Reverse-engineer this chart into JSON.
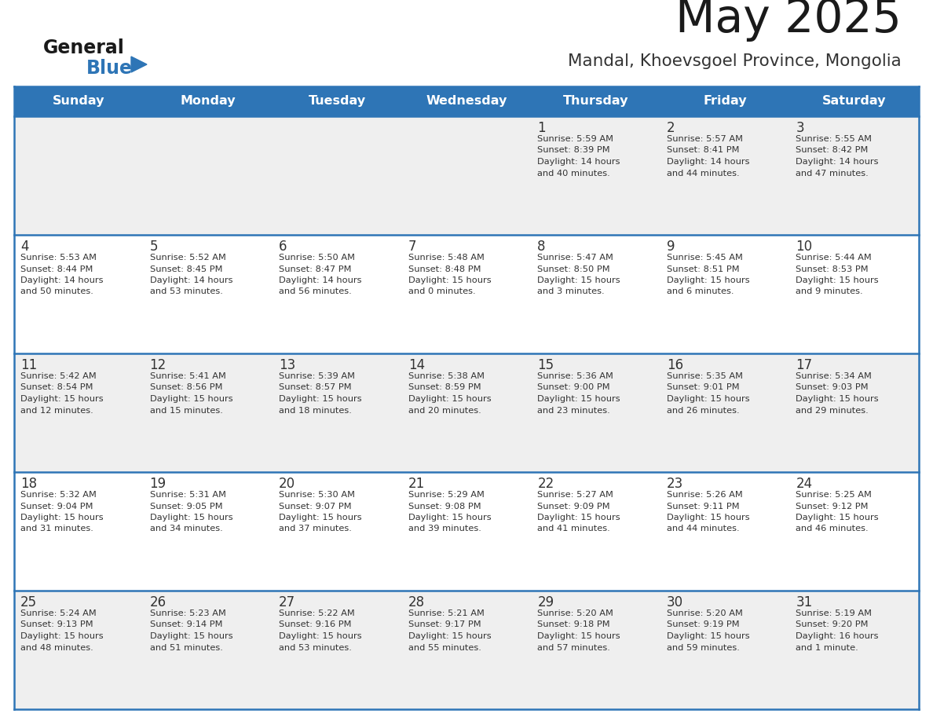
{
  "title": "May 2025",
  "subtitle": "Mandal, Khoevsgoel Province, Mongolia",
  "header_bg": "#2E75B6",
  "header_text_color": "#FFFFFF",
  "day_headers": [
    "Sunday",
    "Monday",
    "Tuesday",
    "Wednesday",
    "Thursday",
    "Friday",
    "Saturday"
  ],
  "cell_bg_light": "#EFEFEF",
  "cell_bg_white": "#FFFFFF",
  "divider_color": "#2E75B6",
  "text_color": "#333333",
  "number_color": "#333333",
  "logo_general_color": "#1a1a1a",
  "logo_blue_color": "#2E75B6",
  "logo_triangle_color": "#2E75B6",
  "weeks": [
    {
      "days": [
        {
          "day": null,
          "info": null
        },
        {
          "day": null,
          "info": null
        },
        {
          "day": null,
          "info": null
        },
        {
          "day": null,
          "info": null
        },
        {
          "day": 1,
          "info": "Sunrise: 5:59 AM\nSunset: 8:39 PM\nDaylight: 14 hours\nand 40 minutes."
        },
        {
          "day": 2,
          "info": "Sunrise: 5:57 AM\nSunset: 8:41 PM\nDaylight: 14 hours\nand 44 minutes."
        },
        {
          "day": 3,
          "info": "Sunrise: 5:55 AM\nSunset: 8:42 PM\nDaylight: 14 hours\nand 47 minutes."
        }
      ]
    },
    {
      "days": [
        {
          "day": 4,
          "info": "Sunrise: 5:53 AM\nSunset: 8:44 PM\nDaylight: 14 hours\nand 50 minutes."
        },
        {
          "day": 5,
          "info": "Sunrise: 5:52 AM\nSunset: 8:45 PM\nDaylight: 14 hours\nand 53 minutes."
        },
        {
          "day": 6,
          "info": "Sunrise: 5:50 AM\nSunset: 8:47 PM\nDaylight: 14 hours\nand 56 minutes."
        },
        {
          "day": 7,
          "info": "Sunrise: 5:48 AM\nSunset: 8:48 PM\nDaylight: 15 hours\nand 0 minutes."
        },
        {
          "day": 8,
          "info": "Sunrise: 5:47 AM\nSunset: 8:50 PM\nDaylight: 15 hours\nand 3 minutes."
        },
        {
          "day": 9,
          "info": "Sunrise: 5:45 AM\nSunset: 8:51 PM\nDaylight: 15 hours\nand 6 minutes."
        },
        {
          "day": 10,
          "info": "Sunrise: 5:44 AM\nSunset: 8:53 PM\nDaylight: 15 hours\nand 9 minutes."
        }
      ]
    },
    {
      "days": [
        {
          "day": 11,
          "info": "Sunrise: 5:42 AM\nSunset: 8:54 PM\nDaylight: 15 hours\nand 12 minutes."
        },
        {
          "day": 12,
          "info": "Sunrise: 5:41 AM\nSunset: 8:56 PM\nDaylight: 15 hours\nand 15 minutes."
        },
        {
          "day": 13,
          "info": "Sunrise: 5:39 AM\nSunset: 8:57 PM\nDaylight: 15 hours\nand 18 minutes."
        },
        {
          "day": 14,
          "info": "Sunrise: 5:38 AM\nSunset: 8:59 PM\nDaylight: 15 hours\nand 20 minutes."
        },
        {
          "day": 15,
          "info": "Sunrise: 5:36 AM\nSunset: 9:00 PM\nDaylight: 15 hours\nand 23 minutes."
        },
        {
          "day": 16,
          "info": "Sunrise: 5:35 AM\nSunset: 9:01 PM\nDaylight: 15 hours\nand 26 minutes."
        },
        {
          "day": 17,
          "info": "Sunrise: 5:34 AM\nSunset: 9:03 PM\nDaylight: 15 hours\nand 29 minutes."
        }
      ]
    },
    {
      "days": [
        {
          "day": 18,
          "info": "Sunrise: 5:32 AM\nSunset: 9:04 PM\nDaylight: 15 hours\nand 31 minutes."
        },
        {
          "day": 19,
          "info": "Sunrise: 5:31 AM\nSunset: 9:05 PM\nDaylight: 15 hours\nand 34 minutes."
        },
        {
          "day": 20,
          "info": "Sunrise: 5:30 AM\nSunset: 9:07 PM\nDaylight: 15 hours\nand 37 minutes."
        },
        {
          "day": 21,
          "info": "Sunrise: 5:29 AM\nSunset: 9:08 PM\nDaylight: 15 hours\nand 39 minutes."
        },
        {
          "day": 22,
          "info": "Sunrise: 5:27 AM\nSunset: 9:09 PM\nDaylight: 15 hours\nand 41 minutes."
        },
        {
          "day": 23,
          "info": "Sunrise: 5:26 AM\nSunset: 9:11 PM\nDaylight: 15 hours\nand 44 minutes."
        },
        {
          "day": 24,
          "info": "Sunrise: 5:25 AM\nSunset: 9:12 PM\nDaylight: 15 hours\nand 46 minutes."
        }
      ]
    },
    {
      "days": [
        {
          "day": 25,
          "info": "Sunrise: 5:24 AM\nSunset: 9:13 PM\nDaylight: 15 hours\nand 48 minutes."
        },
        {
          "day": 26,
          "info": "Sunrise: 5:23 AM\nSunset: 9:14 PM\nDaylight: 15 hours\nand 51 minutes."
        },
        {
          "day": 27,
          "info": "Sunrise: 5:22 AM\nSunset: 9:16 PM\nDaylight: 15 hours\nand 53 minutes."
        },
        {
          "day": 28,
          "info": "Sunrise: 5:21 AM\nSunset: 9:17 PM\nDaylight: 15 hours\nand 55 minutes."
        },
        {
          "day": 29,
          "info": "Sunrise: 5:20 AM\nSunset: 9:18 PM\nDaylight: 15 hours\nand 57 minutes."
        },
        {
          "day": 30,
          "info": "Sunrise: 5:20 AM\nSunset: 9:19 PM\nDaylight: 15 hours\nand 59 minutes."
        },
        {
          "day": 31,
          "info": "Sunrise: 5:19 AM\nSunset: 9:20 PM\nDaylight: 16 hours\nand 1 minute."
        }
      ]
    }
  ]
}
